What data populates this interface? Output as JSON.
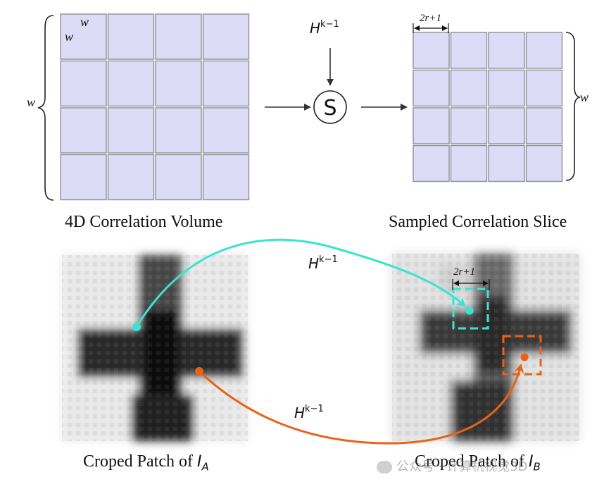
{
  "diagram": {
    "volume_caption": "4D Correlation Volume",
    "slice_caption": "Sampled Correlation Slice",
    "patch_a_caption": "Croped Patch of",
    "patch_a_symbol": "I",
    "patch_a_subscript": "A",
    "patch_b_caption": "Croped Patch of",
    "patch_b_symbol": "I",
    "patch_b_subscript": "B",
    "w_label": "w",
    "window_label": "2r+1",
    "homography_symbol": "H",
    "homography_superscript": "k−1",
    "sampler_label": "S"
  },
  "colors": {
    "cell_fill": "#dcdcf7",
    "cell_stroke": "#8f8f99",
    "cyan": "#3ae4d2",
    "orange": "#ea6214"
  },
  "watermark": {
    "text": "公众号 · 计算机视觉3D"
  }
}
